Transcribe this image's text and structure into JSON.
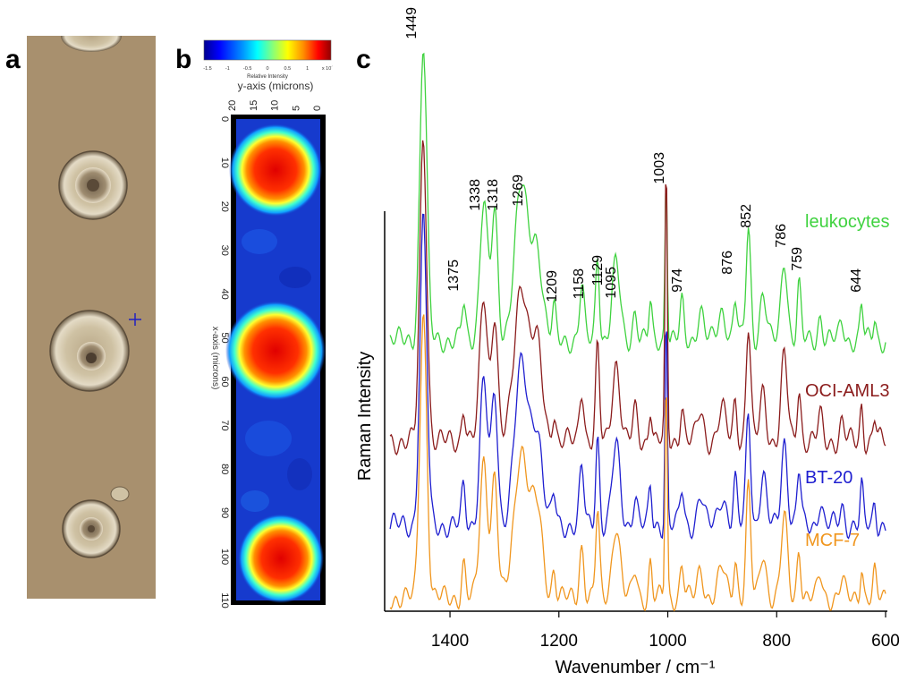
{
  "panels": {
    "a": "a",
    "b": "b",
    "c": "c"
  },
  "colors": {
    "leukocytes": "#3fd23f",
    "oci_aml3": "#8b1c1c",
    "bt20": "#1f1fd0",
    "mcf7": "#f0961e",
    "micrograph_bg": "#a8906e",
    "map_bg": "#1234c8"
  },
  "micrograph": {
    "cells": 4,
    "marker": "crosshair-marker"
  },
  "map": {
    "colorbar": {
      "ticks": [
        "-1.5",
        "-1",
        "-0.5",
        "0",
        "0.5",
        "1",
        "x 10´"
      ],
      "label": "Relative Intensity",
      "colormap": [
        "#000090",
        "#0000ff",
        "#0090ff",
        "#00ffff",
        "#90ff70",
        "#ffff00",
        "#ff9000",
        "#ff0000",
        "#900000"
      ]
    },
    "y_axis_label": "y-axis (microns)",
    "y_ticks": [
      "20",
      "15",
      "10",
      "5",
      "0"
    ],
    "x_axis_label": "x-axis (microns)",
    "x_ticks": [
      "0",
      "10",
      "20",
      "30",
      "40",
      "50",
      "60",
      "70",
      "80",
      "90",
      "100",
      "110"
    ],
    "hotspots_at_x": [
      10,
      52,
      100
    ]
  },
  "chart_data": {
    "type": "line",
    "xlabel": "Wavenumber / cm⁻¹",
    "ylabel": "Raman Intensity",
    "xlim": [
      1520,
      600
    ],
    "xticks": [
      "1400",
      "1200",
      "1000",
      "800",
      "600"
    ],
    "peak_labels": [
      "1449",
      "1375",
      "1338",
      "1318",
      "1269",
      "1209",
      "1158",
      "1129",
      "1095",
      "1003",
      "974",
      "876",
      "852",
      "786",
      "759",
      "644"
    ],
    "series": [
      {
        "name": "leukocytes",
        "color": "#3fd23f"
      },
      {
        "name": "OCI-AML3",
        "color": "#8b1c1c"
      },
      {
        "name": "BT-20",
        "color": "#1f1fd0"
      },
      {
        "name": "MCF-7",
        "color": "#f0961e"
      }
    ]
  }
}
